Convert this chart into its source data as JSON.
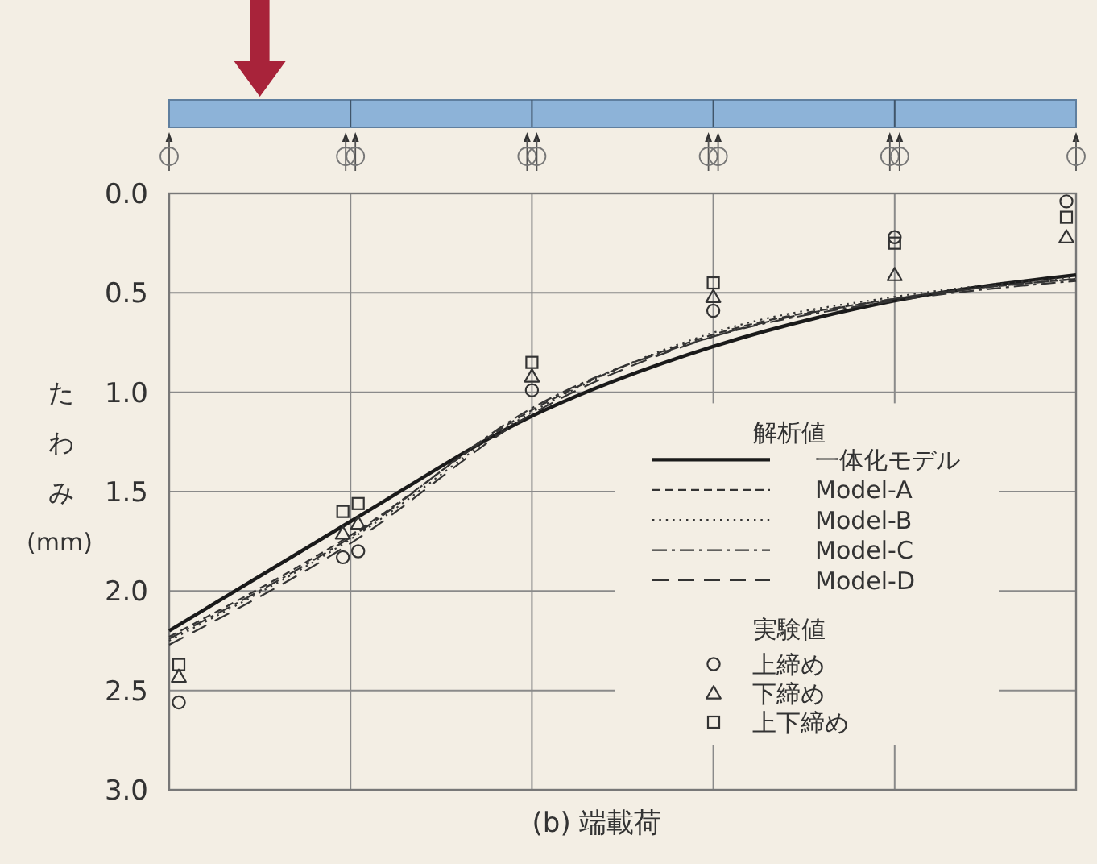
{
  "chart_data": {
    "type": "line",
    "title": "(b) 端載荷",
    "ylabel": "たわみ (mm)",
    "legend_title": "解析値",
    "annotations": [
      "実験値"
    ],
    "categories": [
      null,
      null,
      null,
      null,
      null,
      null
    ],
    "ylim": [
      3,
      0
    ],
    "yticks": [
      {
        "value": 0,
        "label": "0.0"
      },
      {
        "value": 0.5,
        "label": "0.5"
      },
      {
        "value": 1,
        "label": "1.0"
      },
      {
        "value": 1.5,
        "label": "1.5"
      },
      {
        "value": 2,
        "label": "2.0"
      },
      {
        "value": 2.5,
        "label": "2.5"
      },
      {
        "value": 3,
        "label": "3.0"
      }
    ],
    "grid": true,
    "tick_labels": "y",
    "legend": "bottom right",
    "series": [
      {
        "name": "一体化モデル",
        "line_style": "solid",
        "color": "#1a1a1a",
        "values": [
          2.2,
          1.65,
          1.12,
          0.77,
          0.54,
          0.41
        ]
      },
      {
        "name": "Model-A",
        "line_style": "dashed",
        "color": "#333333",
        "values": [
          2.23,
          1.72,
          1.09,
          0.71,
          0.53,
          0.43
        ]
      },
      {
        "name": "Model-B",
        "line_style": "dotted",
        "color": "#333333",
        "values": [
          2.25,
          1.74,
          1.1,
          0.7,
          0.52,
          0.42
        ]
      },
      {
        "name": "Model-C",
        "line_style": "dashdot",
        "color": "#333333",
        "values": [
          2.24,
          1.73,
          1.08,
          0.72,
          0.54,
          0.44
        ]
      },
      {
        "name": "Model-D",
        "line_style": "longdash",
        "color": "#333333",
        "values": [
          2.27,
          1.76,
          1.11,
          0.72,
          0.53,
          0.43
        ]
      },
      {
        "name": "上締め",
        "type": "scatter",
        "marker": "circle",
        "color": "#333333",
        "values": [
          2.56,
          1.83,
          0.99,
          0.59,
          0.22,
          0.04
        ]
      },
      {
        "name": "下締め",
        "type": "scatter",
        "marker": "triangle",
        "color": "#333333",
        "values": [
          2.43,
          1.71,
          0.92,
          0.52,
          0.41,
          0.22
        ]
      },
      {
        "name": "上下締め",
        "type": "scatter",
        "marker": "square",
        "color": "#333333",
        "values": [
          2.37,
          1.6,
          0.85,
          0.45,
          0.25,
          0.12
        ]
      },
      {
        "type": "scatter",
        "marker": "circle",
        "color": "#333333",
        "values": [
          null,
          1.8,
          null,
          null,
          null,
          null
        ]
      },
      {
        "type": "scatter",
        "marker": "triangle",
        "color": "#333333",
        "values": [
          null,
          1.66,
          null,
          null,
          null,
          null
        ]
      },
      {
        "type": "scatter",
        "marker": "square",
        "color": "#333333",
        "values": [
          null,
          1.56,
          null,
          null,
          null,
          null
        ]
      }
    ]
  }
}
